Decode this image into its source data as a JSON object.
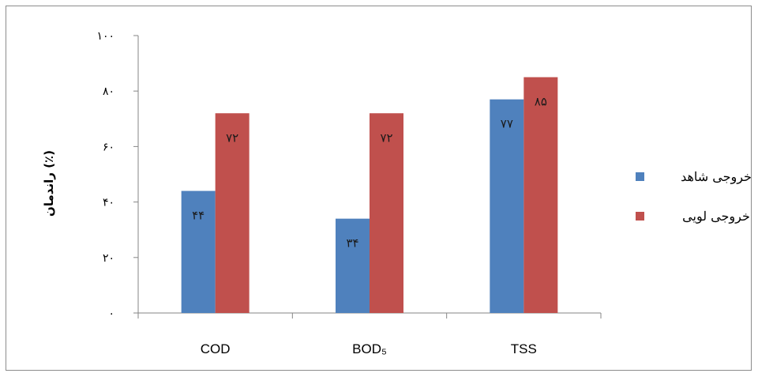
{
  "chart_data": {
    "type": "bar",
    "categories": [
      "COD",
      "BOD5",
      "TSS"
    ],
    "series": [
      {
        "name": "خروجی شاهد",
        "values": [
          44,
          34,
          77
        ],
        "labels": [
          "۴۴",
          "۳۴",
          "۷۷"
        ],
        "color": "#4F81BD"
      },
      {
        "name": "خروجی لویی",
        "values": [
          72,
          72,
          85
        ],
        "labels": [
          "۷۲",
          "۷۲",
          "۸۵"
        ],
        "color": "#C0504D"
      }
    ],
    "ylabel": "راندمان (٪)",
    "ylim": [
      0,
      100
    ],
    "yticks": [
      0,
      20,
      40,
      60,
      80,
      100
    ],
    "ytick_labels": [
      "۰",
      "۲۰",
      "۴۰",
      "۶۰",
      "۸۰",
      "۱۰۰"
    ],
    "category_labels": [
      "COD",
      "BOD₅",
      "TSS"
    ],
    "grid": false,
    "legend_position": "right"
  }
}
